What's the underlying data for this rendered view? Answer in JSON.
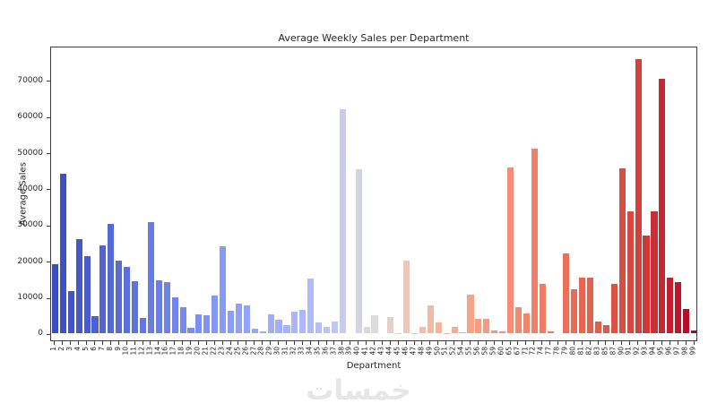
{
  "watermark_text": "خمسات",
  "chart_data": {
    "type": "bar",
    "title": "Average Weekly Sales per Department",
    "xlabel": "Department",
    "ylabel": "Average Sales",
    "grid": false,
    "legend": null,
    "ylim": [
      -2000,
      79500
    ],
    "yticks": [
      0,
      10000,
      20000,
      30000,
      40000,
      50000,
      60000,
      70000
    ],
    "categories": [
      "1",
      "2",
      "3",
      "4",
      "5",
      "6",
      "7",
      "8",
      "9",
      "10",
      "11",
      "12",
      "13",
      "14",
      "16",
      "17",
      "18",
      "19",
      "20",
      "21",
      "22",
      "23",
      "24",
      "25",
      "26",
      "27",
      "28",
      "29",
      "30",
      "31",
      "32",
      "33",
      "34",
      "35",
      "36",
      "37",
      "38",
      "39",
      "40",
      "41",
      "42",
      "43",
      "44",
      "45",
      "46",
      "47",
      "48",
      "49",
      "50",
      "51",
      "52",
      "54",
      "55",
      "56",
      "58",
      "59",
      "60",
      "65",
      "67",
      "71",
      "72",
      "74",
      "77",
      "78",
      "79",
      "80",
      "81",
      "82",
      "83",
      "85",
      "87",
      "90",
      "91",
      "92",
      "93",
      "94",
      "95",
      "96",
      "97",
      "98",
      "99"
    ],
    "values": [
      19100,
      44000,
      11700,
      26000,
      21400,
      4800,
      24200,
      30300,
      20100,
      18300,
      14400,
      4200,
      30800,
      14700,
      14100,
      9900,
      7100,
      1400,
      5300,
      5000,
      10500,
      24000,
      6200,
      8200,
      7700,
      1200,
      550,
      5250,
      3700,
      2300,
      6050,
      6400,
      15000,
      2950,
      1700,
      3200,
      61900,
      15,
      45300,
      1700,
      5050,
      5,
      4400,
      20,
      20100,
      50,
      1700,
      7750,
      3050,
      30,
      1700,
      250,
      10600,
      4050,
      4050,
      850,
      550,
      45800,
      7270,
      5430,
      50900,
      13700,
      400,
      10,
      22000,
      12100,
      15400,
      15400,
      3200,
      2300,
      13600,
      45650,
      33800,
      75800,
      27050,
      33600,
      70400,
      15450,
      14100,
      6600,
      700
    ],
    "colormap": {
      "name": "coolwarm",
      "anchors": [
        [
          0.0,
          "#3B4CC0"
        ],
        [
          0.1,
          "#576CD9"
        ],
        [
          0.2,
          "#7589EE"
        ],
        [
          0.3,
          "#93A4FC"
        ],
        [
          0.4,
          "#B2BAFE"
        ],
        [
          0.5,
          "#DDDCDB"
        ],
        [
          0.6,
          "#F5B59B"
        ],
        [
          0.7,
          "#F49177"
        ],
        [
          0.8,
          "#EC7059"
        ],
        [
          0.9,
          "#D6493F"
        ],
        [
          1.0,
          "#B40426"
        ]
      ]
    }
  }
}
